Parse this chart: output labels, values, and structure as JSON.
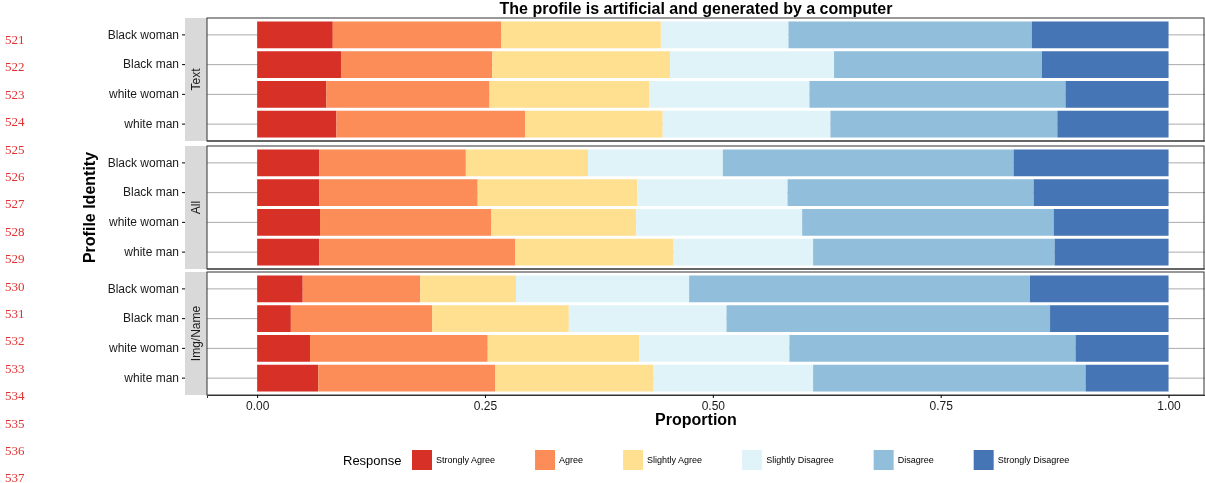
{
  "chart_data": [
    {
      "type": "bar",
      "title": "The profile is artificial and generated by a computer",
      "subtitle": "Text",
      "annotations": [
        "521",
        "522",
        "523",
        "524",
        "525",
        "526",
        "527",
        "528",
        "529",
        "530",
        "531",
        "532",
        "533",
        "534",
        "535",
        "536",
        "537"
      ],
      "categories": [
        "Black woman",
        "Black man",
        "white woman",
        "white man"
      ],
      "stacked": true,
      "orientation": "horizontal",
      "grid": "y",
      "tick_labels": "y",
      "xlim": [
        -0.055,
        1.04
      ],
      "series": [
        {
          "color": "#d73027",
          "values": [
            0.083,
            0.092,
            0.076,
            0.087
          ]
        },
        {
          "color": "#fc8d59",
          "values": [
            0.185,
            0.166,
            0.179,
            0.207
          ]
        },
        {
          "color": "#fee090",
          "values": [
            0.175,
            0.195,
            0.175,
            0.151
          ]
        },
        {
          "color": "#e0f3f8",
          "values": [
            0.14,
            0.18,
            0.176,
            0.184
          ]
        },
        {
          "color": "#91bfdb",
          "values": [
            0.267,
            0.228,
            0.281,
            0.249
          ]
        },
        {
          "color": "#4575b4",
          "values": [
            0.15,
            0.139,
            0.113,
            0.122
          ]
        }
      ]
    },
    {
      "type": "bar",
      "subtitle": "All",
      "ylabel": "Profile Identity",
      "categories": [
        "Black woman",
        "Black man",
        "white woman",
        "white man"
      ],
      "stacked": true,
      "orientation": "horizontal",
      "grid": "y",
      "tick_labels": "y",
      "xlim": [
        -0.055,
        1.04
      ],
      "series": [
        {
          "color": "#d73027",
          "values": [
            0.068,
            0.068,
            0.069,
            0.068
          ]
        },
        {
          "color": "#fc8d59",
          "values": [
            0.161,
            0.174,
            0.188,
            0.215
          ]
        },
        {
          "color": "#fee090",
          "values": [
            0.134,
            0.175,
            0.159,
            0.174
          ]
        },
        {
          "color": "#e0f3f8",
          "values": [
            0.148,
            0.165,
            0.182,
            0.153
          ]
        },
        {
          "color": "#91bfdb",
          "values": [
            0.319,
            0.27,
            0.276,
            0.265
          ]
        },
        {
          "color": "#4575b4",
          "values": [
            0.17,
            0.148,
            0.126,
            0.125
          ]
        }
      ]
    },
    {
      "type": "bar",
      "subtitle": "Img/Name",
      "xlabel": "Proportion",
      "legend": "bottom",
      "legend_title": "Response",
      "categories": [
        "Black woman",
        "Black man",
        "white woman",
        "white man"
      ],
      "stacked": true,
      "orientation": "horizontal",
      "grid": "y",
      "xlim": [
        -0.055,
        1.04
      ],
      "xticks": [
        {
          "value": 0,
          "label": "0.00"
        },
        {
          "value": 0.25,
          "label": "0.25"
        },
        {
          "value": 0.5,
          "label": "0.50"
        },
        {
          "value": 0.75,
          "label": "0.75"
        },
        {
          "value": 1,
          "label": "1.00"
        }
      ],
      "series": [
        {
          "name": "Strongly Agree",
          "color": "#d73027",
          "values": [
            0.05,
            0.037,
            0.058,
            0.067
          ]
        },
        {
          "name": "Agree",
          "color": "#fc8d59",
          "values": [
            0.129,
            0.155,
            0.195,
            0.194
          ]
        },
        {
          "name": "Slightly Agree",
          "color": "#fee090",
          "values": [
            0.105,
            0.15,
            0.166,
            0.174
          ]
        },
        {
          "name": "Slightly Disagree",
          "color": "#e0f3f8",
          "values": [
            0.19,
            0.173,
            0.165,
            0.175
          ]
        },
        {
          "name": "Disagree",
          "color": "#91bfdb",
          "values": [
            0.374,
            0.355,
            0.314,
            0.299
          ]
        },
        {
          "name": "Strongly Disagree",
          "color": "#4575b4",
          "values": [
            0.152,
            0.13,
            0.102,
            0.091
          ]
        }
      ]
    }
  ]
}
